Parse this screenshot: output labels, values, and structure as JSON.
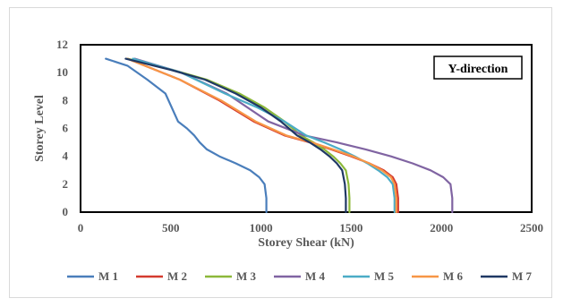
{
  "chart_data": {
    "type": "line",
    "title": "",
    "xlabel": "Storey Shear (kN)",
    "ylabel": "Storey Level",
    "xlim": [
      0,
      2500
    ],
    "ylim": [
      0,
      12
    ],
    "xticks": [
      0,
      500,
      1000,
      1500,
      2000,
      2500
    ],
    "yticks": [
      0,
      2,
      4,
      6,
      8,
      10,
      12
    ],
    "grid": false,
    "legend_position": "bottom",
    "annotation": "Y-direction",
    "series": [
      {
        "name": "M 1",
        "color": "#4a7ebb",
        "x": [
          1030,
          1030,
          1020,
          990,
          940,
          860,
          770,
          700,
          660,
          630,
          590,
          540,
          470,
          370,
          260,
          140
        ],
        "y": [
          0,
          1,
          2,
          2.5,
          3,
          3.5,
          4,
          4.5,
          5,
          5.5,
          6,
          6.5,
          8.5,
          9.5,
          10.5,
          11
        ]
      },
      {
        "name": "M 2",
        "color": "#d43b2f",
        "x": [
          1760,
          1760,
          1750,
          1730,
          1680,
          1600,
          1500,
          1390,
          1270,
          1130,
          960,
          770,
          550,
          260
        ],
        "y": [
          0,
          1,
          2,
          2.5,
          3,
          3.5,
          4,
          4.5,
          5,
          5.5,
          6.5,
          8,
          9.5,
          11
        ]
      },
      {
        "name": "M 3",
        "color": "#8cb83a",
        "x": [
          1490,
          1490,
          1485,
          1470,
          1440,
          1400,
          1350,
          1290,
          1220,
          1130,
          1020,
          880,
          700,
          510,
          260
        ],
        "y": [
          0,
          1,
          2,
          3,
          3.5,
          4,
          4.5,
          5,
          5.5,
          6.5,
          7.5,
          8.5,
          9.5,
          10.2,
          11
        ]
      },
      {
        "name": "M 4",
        "color": "#8064a2",
        "x": [
          2060,
          2060,
          2050,
          2010,
          1940,
          1840,
          1720,
          1580,
          1420,
          1240,
          1040,
          810,
          560,
          300
        ],
        "y": [
          0,
          1,
          2,
          2.5,
          3,
          3.5,
          4,
          4.5,
          5,
          5.5,
          6.5,
          8.5,
          10,
          11
        ]
      },
      {
        "name": "M 5",
        "color": "#4bacc6",
        "x": [
          1740,
          1740,
          1730,
          1700,
          1650,
          1590,
          1520,
          1440,
          1350,
          1250,
          1130,
          980,
          800,
          560,
          290
        ],
        "y": [
          0,
          1,
          2,
          2.5,
          3,
          3.5,
          4,
          4.5,
          5,
          5.5,
          6.5,
          7.5,
          8.5,
          10,
          11
        ]
      },
      {
        "name": "M 6",
        "color": "#f79646",
        "x": [
          1750,
          1750,
          1740,
          1720,
          1670,
          1600,
          1510,
          1400,
          1280,
          1140,
          970,
          780,
          550,
          260
        ],
        "y": [
          0,
          1,
          2,
          2.5,
          3,
          3.5,
          4,
          4.5,
          5,
          5.5,
          6.5,
          8,
          9.5,
          11
        ]
      },
      {
        "name": "M 7",
        "color": "#1f3864",
        "x": [
          1470,
          1470,
          1465,
          1450,
          1420,
          1380,
          1330,
          1270,
          1200,
          1110,
          1000,
          860,
          690,
          500,
          250
        ],
        "y": [
          0,
          1,
          2,
          3,
          3.5,
          4,
          4.5,
          5,
          5.5,
          6.5,
          7.5,
          8.5,
          9.5,
          10.2,
          11
        ]
      }
    ]
  }
}
